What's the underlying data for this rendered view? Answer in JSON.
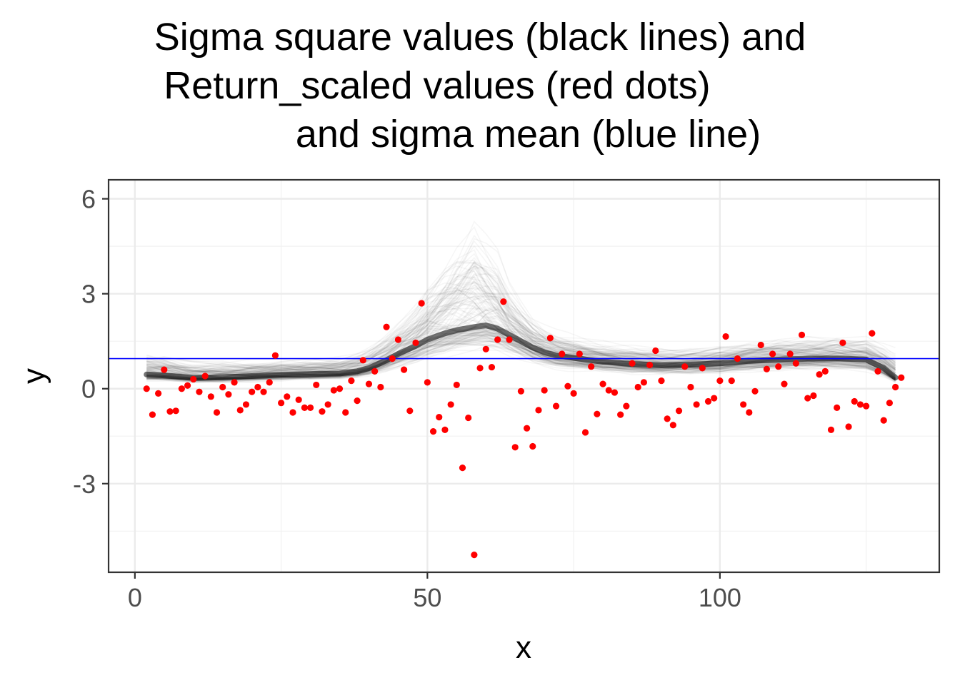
{
  "chart_data": {
    "type": "line",
    "title": "Sigma square values (black lines) and\nReturn_scaled values (red dots)        \n         and sigma mean (blue line)",
    "xlabel": "x",
    "ylabel": "y",
    "xlim": [
      -4.5,
      137.5
    ],
    "ylim": [
      -5.8,
      6.6
    ],
    "x_ticks": [
      0,
      50,
      100
    ],
    "x_tick_labels": [
      "0",
      "50",
      "100"
    ],
    "y_ticks": [
      -3,
      0,
      3,
      6
    ],
    "y_tick_labels": [
      "-3",
      "0",
      "3",
      "6"
    ],
    "grid": true,
    "legend": "none",
    "colors": {
      "sigma_lines": "#000000",
      "return_points": "#ff0000",
      "sigma_mean": "#0000ff",
      "panel_border": "#333333",
      "grid_major": "#ebebeb",
      "grid_minor": "#f2f2f2"
    },
    "series": [
      {
        "kind": "sigma_square_band",
        "x": [
          2,
          5,
          10,
          15,
          20,
          25,
          30,
          35,
          38,
          40,
          43,
          45,
          48,
          50,
          53,
          55,
          58,
          60,
          62,
          64,
          66,
          68,
          70,
          72,
          74,
          76,
          80,
          85,
          90,
          95,
          100,
          105,
          110,
          115,
          120,
          125,
          128,
          130
        ],
        "median": [
          0.45,
          0.42,
          0.34,
          0.36,
          0.4,
          0.44,
          0.46,
          0.48,
          0.55,
          0.65,
          0.9,
          1.1,
          1.35,
          1.55,
          1.75,
          1.85,
          1.95,
          2.0,
          1.9,
          1.7,
          1.5,
          1.3,
          1.15,
          1.05,
          1.0,
          0.95,
          0.85,
          0.78,
          0.74,
          0.76,
          0.8,
          0.88,
          0.92,
          0.95,
          0.96,
          0.92,
          0.65,
          0.35
        ],
        "upper": [
          1.3,
          1.2,
          0.95,
          0.95,
          0.95,
          1.0,
          1.05,
          1.1,
          1.25,
          1.45,
          1.9,
          2.3,
          3.0,
          3.7,
          4.6,
          5.2,
          6.0,
          5.2,
          4.6,
          3.5,
          2.9,
          2.4,
          2.1,
          1.9,
          1.8,
          1.7,
          1.55,
          1.45,
          1.4,
          1.4,
          1.5,
          1.6,
          1.7,
          1.75,
          1.8,
          1.75,
          1.5,
          1.3
        ],
        "lower": [
          0.2,
          0.2,
          0.15,
          0.15,
          0.18,
          0.2,
          0.22,
          0.25,
          0.28,
          0.32,
          0.45,
          0.55,
          0.7,
          0.8,
          0.9,
          1.0,
          1.05,
          1.05,
          1.0,
          0.9,
          0.8,
          0.7,
          0.62,
          0.55,
          0.5,
          0.48,
          0.42,
          0.38,
          0.36,
          0.38,
          0.4,
          0.45,
          0.5,
          0.52,
          0.52,
          0.45,
          0.28,
          0.15
        ]
      },
      {
        "kind": "sigma_mean",
        "y": 0.95
      },
      {
        "kind": "return_scaled_points",
        "x": [
          2,
          3,
          4,
          5,
          6,
          7,
          8,
          9,
          10,
          11,
          12,
          13,
          14,
          15,
          16,
          17,
          18,
          19,
          20,
          21,
          22,
          23,
          24,
          25,
          26,
          27,
          28,
          29,
          30,
          31,
          32,
          33,
          34,
          35,
          36,
          37,
          38,
          39,
          40,
          41,
          42,
          43,
          44,
          45,
          46,
          47,
          48,
          49,
          50,
          51,
          52,
          53,
          54,
          55,
          56,
          57,
          58,
          59,
          60,
          61,
          62,
          63,
          64,
          65,
          66,
          67,
          68,
          69,
          70,
          71,
          72,
          73,
          74,
          75,
          76,
          77,
          78,
          79,
          80,
          81,
          82,
          83,
          84,
          85,
          86,
          87,
          88,
          89,
          90,
          91,
          92,
          93,
          94,
          95,
          96,
          97,
          98,
          99,
          100,
          101,
          102,
          103,
          104,
          105,
          106,
          107,
          108,
          109,
          110,
          111,
          112,
          113,
          114,
          115,
          116,
          117,
          118,
          119,
          120,
          121,
          122,
          123,
          124,
          125,
          126,
          127,
          128,
          129,
          130,
          131
        ],
        "y": [
          0.0,
          -0.82,
          -0.15,
          0.6,
          -0.72,
          -0.7,
          0.0,
          0.1,
          0.3,
          -0.1,
          0.4,
          -0.25,
          -0.75,
          0.05,
          -0.18,
          0.2,
          -0.68,
          -0.5,
          -0.1,
          0.05,
          -0.1,
          0.2,
          1.05,
          -0.45,
          -0.25,
          -0.75,
          -0.35,
          -0.6,
          -0.6,
          0.12,
          -0.72,
          -0.5,
          -0.05,
          0.0,
          -0.75,
          0.25,
          -0.38,
          0.9,
          0.15,
          0.55,
          0.05,
          1.95,
          0.95,
          1.55,
          0.6,
          -0.7,
          1.45,
          2.7,
          0.2,
          -1.35,
          -0.9,
          -1.3,
          -0.5,
          0.12,
          -2.5,
          -0.92,
          -5.25,
          0.65,
          1.25,
          0.68,
          1.55,
          2.75,
          1.55,
          -1.85,
          -0.08,
          -1.25,
          -1.82,
          -0.68,
          -0.05,
          1.6,
          -0.55,
          1.1,
          0.08,
          -0.15,
          1.1,
          -1.38,
          0.7,
          -0.8,
          0.15,
          -0.05,
          -0.12,
          -0.82,
          -0.55,
          0.8,
          0.05,
          0.2,
          0.75,
          1.2,
          0.25,
          -0.95,
          -1.15,
          -0.7,
          0.7,
          0.05,
          -0.5,
          0.65,
          -0.4,
          -0.3,
          0.25,
          1.65,
          0.25,
          0.95,
          -0.5,
          -0.75,
          -0.08,
          1.38,
          0.62,
          1.1,
          0.7,
          0.15,
          1.1,
          0.8,
          1.7,
          -0.3,
          -0.22,
          0.45,
          0.55,
          -1.3,
          -0.6,
          1.45,
          -1.2,
          -0.4,
          -0.5,
          -0.55,
          1.75,
          0.55,
          -1.0,
          -0.45,
          0.05,
          0.35
        ]
      }
    ]
  }
}
